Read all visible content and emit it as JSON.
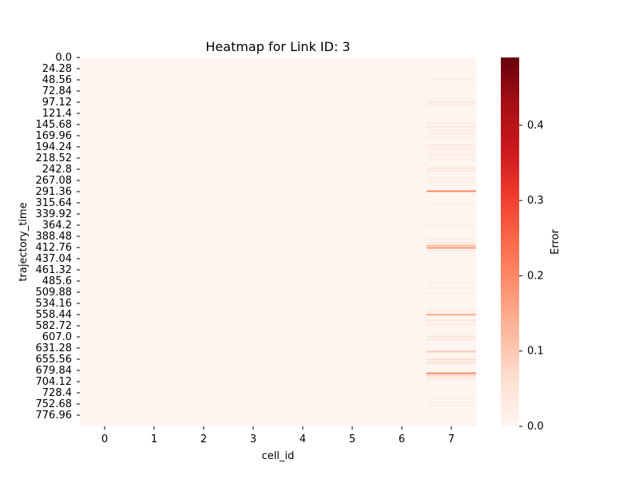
{
  "chart_data": {
    "type": "heatmap",
    "title": "Heatmap for Link ID: 3",
    "xlabel": "cell_id",
    "ylabel": "trajectory_time",
    "x_categories": [
      "0",
      "1",
      "2",
      "3",
      "4",
      "5",
      "6",
      "7"
    ],
    "y_tick_labels": [
      "0.0",
      "24.28",
      "48.56",
      "72.84",
      "97.12",
      "121.4",
      "145.68",
      "169.96",
      "194.24",
      "218.52",
      "242.8",
      "267.08",
      "291.36",
      "315.64",
      "339.92",
      "364.2",
      "388.48",
      "412.76",
      "437.04",
      "461.32",
      "485.6",
      "509.88",
      "534.16",
      "558.44",
      "582.72",
      "607.0",
      "631.28",
      "655.56",
      "679.84",
      "704.12",
      "728.4",
      "752.68",
      "776.96"
    ],
    "y_range": [
      0,
      800
    ],
    "colorbar": {
      "label": "Error",
      "colormap": "Reds",
      "range": [
        0,
        0.49
      ],
      "ticks": [
        "0.0",
        "0.1",
        "0.2",
        "0.3",
        "0.4"
      ]
    },
    "base_value": 0.0,
    "nonzero_cells": [
      {
        "cell_id": 7,
        "time": 48,
        "value": 0.02
      },
      {
        "cell_id": 7,
        "time": 55,
        "value": 0.01
      },
      {
        "cell_id": 7,
        "time": 97,
        "value": 0.04
      },
      {
        "cell_id": 7,
        "time": 102,
        "value": 0.03
      },
      {
        "cell_id": 7,
        "time": 142,
        "value": 0.03
      },
      {
        "cell_id": 7,
        "time": 150,
        "value": 0.04
      },
      {
        "cell_id": 7,
        "time": 158,
        "value": 0.03
      },
      {
        "cell_id": 7,
        "time": 165,
        "value": 0.02
      },
      {
        "cell_id": 7,
        "time": 172,
        "value": 0.03
      },
      {
        "cell_id": 7,
        "time": 190,
        "value": 0.04
      },
      {
        "cell_id": 7,
        "time": 198,
        "value": 0.03
      },
      {
        "cell_id": 7,
        "time": 205,
        "value": 0.02
      },
      {
        "cell_id": 7,
        "time": 212,
        "value": 0.03
      },
      {
        "cell_id": 7,
        "time": 222,
        "value": 0.02
      },
      {
        "cell_id": 7,
        "time": 240,
        "value": 0.05
      },
      {
        "cell_id": 7,
        "time": 246,
        "value": 0.04
      },
      {
        "cell_id": 7,
        "time": 262,
        "value": 0.03
      },
      {
        "cell_id": 7,
        "time": 270,
        "value": 0.02
      },
      {
        "cell_id": 7,
        "time": 290,
        "value": 0.2
      },
      {
        "cell_id": 7,
        "time": 318,
        "value": 0.02
      },
      {
        "cell_id": 7,
        "time": 362,
        "value": 0.02
      },
      {
        "cell_id": 7,
        "time": 395,
        "value": 0.03
      },
      {
        "cell_id": 7,
        "time": 402,
        "value": 0.04
      },
      {
        "cell_id": 7,
        "time": 408,
        "value": 0.12
      },
      {
        "cell_id": 7,
        "time": 413,
        "value": 0.18
      },
      {
        "cell_id": 7,
        "time": 420,
        "value": 0.03
      },
      {
        "cell_id": 7,
        "time": 490,
        "value": 0.02
      },
      {
        "cell_id": 7,
        "time": 500,
        "value": 0.02
      },
      {
        "cell_id": 7,
        "time": 512,
        "value": 0.02
      },
      {
        "cell_id": 7,
        "time": 548,
        "value": 0.03
      },
      {
        "cell_id": 7,
        "time": 553,
        "value": 0.02
      },
      {
        "cell_id": 7,
        "time": 558,
        "value": 0.15
      },
      {
        "cell_id": 7,
        "time": 570,
        "value": 0.05
      },
      {
        "cell_id": 7,
        "time": 580,
        "value": 0.03
      },
      {
        "cell_id": 7,
        "time": 605,
        "value": 0.05
      },
      {
        "cell_id": 7,
        "time": 612,
        "value": 0.04
      },
      {
        "cell_id": 7,
        "time": 638,
        "value": 0.1
      },
      {
        "cell_id": 7,
        "time": 655,
        "value": 0.07
      },
      {
        "cell_id": 7,
        "time": 662,
        "value": 0.06
      },
      {
        "cell_id": 7,
        "time": 685,
        "value": 0.2
      },
      {
        "cell_id": 7,
        "time": 690,
        "value": 0.08
      },
      {
        "cell_id": 7,
        "time": 697,
        "value": 0.04
      },
      {
        "cell_id": 7,
        "time": 740,
        "value": 0.02
      },
      {
        "cell_id": 7,
        "time": 748,
        "value": 0.02
      },
      {
        "cell_id": 7,
        "time": 755,
        "value": 0.02
      },
      {
        "cell_id": 6,
        "time": 228,
        "value": 0.01
      },
      {
        "cell_id": 6,
        "time": 725,
        "value": 0.01
      },
      {
        "cell_id": 0,
        "time": 275,
        "value": 0.01
      },
      {
        "cell_id": 0,
        "time": 405,
        "value": 0.01
      },
      {
        "cell_id": 2,
        "time": 102,
        "value": 0.01
      },
      {
        "cell_id": 2,
        "time": 210,
        "value": 0.01
      },
      {
        "cell_id": 3,
        "time": 690,
        "value": 0.01
      },
      {
        "cell_id": 4,
        "time": 595,
        "value": 0.01
      },
      {
        "cell_id": 5,
        "time": 405,
        "value": 0.01
      }
    ]
  }
}
